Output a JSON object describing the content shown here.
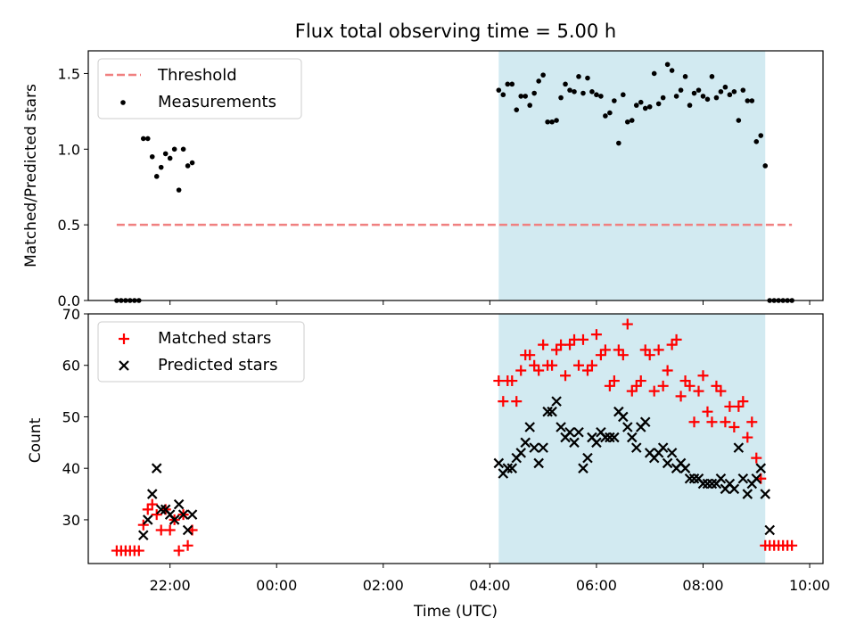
{
  "title": "Flux total observing time = 5.00 h",
  "colors": {
    "threshold": "#f08080",
    "shade": "#add8e6",
    "matched": "#ff0000",
    "predicted": "#000000",
    "measurement": "#000000"
  },
  "chart_data": [
    {
      "type": "scatter",
      "id": "ratio",
      "ylabel": "Matched/Predicted stars",
      "xlabel": "",
      "xlim": [
        "20:28",
        "10:15"
      ],
      "ylim": [
        0,
        1.65
      ],
      "yticks": [
        "0.0",
        "0.5",
        "1.0",
        "1.5"
      ],
      "shaded_range": [
        "04:10",
        "09:10"
      ],
      "legend": {
        "position": "upper-left",
        "entries": [
          "Threshold",
          "Measurements"
        ]
      },
      "threshold": {
        "name": "Threshold",
        "y": 0.5,
        "x": [
          "21:00",
          "09:40"
        ]
      },
      "series": [
        {
          "name": "Measurements",
          "points": [
            [
              "21:00",
              0
            ],
            [
              "21:05",
              0
            ],
            [
              "21:10",
              0
            ],
            [
              "21:15",
              0
            ],
            [
              "21:20",
              0
            ],
            [
              "21:25",
              0
            ],
            [
              "21:30",
              1.07
            ],
            [
              "21:35",
              1.07
            ],
            [
              "21:40",
              0.95
            ],
            [
              "21:45",
              0.82
            ],
            [
              "21:50",
              0.88
            ],
            [
              "21:55",
              0.97
            ],
            [
              "22:00",
              0.94
            ],
            [
              "22:05",
              1.0
            ],
            [
              "22:10",
              0.73
            ],
            [
              "22:15",
              1.0
            ],
            [
              "22:20",
              0.89
            ],
            [
              "22:25",
              0.91
            ],
            [
              "04:10",
              1.39
            ],
            [
              "04:15",
              1.36
            ],
            [
              "04:20",
              1.43
            ],
            [
              "04:25",
              1.43
            ],
            [
              "04:30",
              1.26
            ],
            [
              "04:35",
              1.35
            ],
            [
              "04:40",
              1.35
            ],
            [
              "04:45",
              1.29
            ],
            [
              "04:50",
              1.37
            ],
            [
              "04:55",
              1.45
            ],
            [
              "05:00",
              1.49
            ],
            [
              "05:05",
              1.18
            ],
            [
              "05:10",
              1.18
            ],
            [
              "05:15",
              1.19
            ],
            [
              "05:20",
              1.34
            ],
            [
              "05:25",
              1.43
            ],
            [
              "05:30",
              1.39
            ],
            [
              "05:35",
              1.38
            ],
            [
              "05:40",
              1.48
            ],
            [
              "05:45",
              1.37
            ],
            [
              "05:50",
              1.47
            ],
            [
              "05:55",
              1.38
            ],
            [
              "06:00",
              1.36
            ],
            [
              "06:05",
              1.35
            ],
            [
              "06:10",
              1.22
            ],
            [
              "06:15",
              1.24
            ],
            [
              "06:20",
              1.32
            ],
            [
              "06:25",
              1.04
            ],
            [
              "06:30",
              1.36
            ],
            [
              "06:35",
              1.18
            ],
            [
              "06:40",
              1.19
            ],
            [
              "06:45",
              1.29
            ],
            [
              "06:50",
              1.31
            ],
            [
              "06:55",
              1.27
            ],
            [
              "07:00",
              1.28
            ],
            [
              "07:05",
              1.5
            ],
            [
              "07:10",
              1.3
            ],
            [
              "07:15",
              1.34
            ],
            [
              "07:20",
              1.56
            ],
            [
              "07:25",
              1.52
            ],
            [
              "07:30",
              1.35
            ],
            [
              "07:35",
              1.39
            ],
            [
              "07:40",
              1.48
            ],
            [
              "07:45",
              1.29
            ],
            [
              "07:50",
              1.37
            ],
            [
              "07:55",
              1.39
            ],
            [
              "08:00",
              1.35
            ],
            [
              "08:05",
              1.33
            ],
            [
              "08:10",
              1.48
            ],
            [
              "08:15",
              1.34
            ],
            [
              "08:20",
              1.38
            ],
            [
              "08:25",
              1.41
            ],
            [
              "08:30",
              1.36
            ],
            [
              "08:35",
              1.38
            ],
            [
              "08:40",
              1.19
            ],
            [
              "08:45",
              1.39
            ],
            [
              "08:50",
              1.32
            ],
            [
              "08:55",
              1.32
            ],
            [
              "09:00",
              1.05
            ],
            [
              "09:05",
              1.09
            ],
            [
              "09:10",
              0.89
            ],
            [
              "09:15",
              0
            ],
            [
              "09:20",
              0
            ],
            [
              "09:25",
              0
            ],
            [
              "09:30",
              0
            ],
            [
              "09:35",
              0
            ],
            [
              "09:40",
              0
            ]
          ]
        }
      ]
    },
    {
      "type": "scatter",
      "id": "counts",
      "ylabel": "Count",
      "xlabel": "Time (UTC)",
      "xlim": [
        "20:28",
        "10:15"
      ],
      "ylim": [
        21.5,
        70
      ],
      "yticks": [
        "30",
        "40",
        "50",
        "60",
        "70"
      ],
      "xticks": [
        "22:00",
        "00:00",
        "02:00",
        "04:00",
        "06:00",
        "08:00",
        "10:00"
      ],
      "shaded_range": [
        "04:10",
        "09:10"
      ],
      "legend": {
        "position": "upper-left",
        "entries": [
          "Matched stars",
          "Predicted stars"
        ]
      },
      "series": [
        {
          "name": "Matched stars",
          "marker": "plus",
          "points": [
            [
              "21:00",
              24
            ],
            [
              "21:05",
              24
            ],
            [
              "21:10",
              24
            ],
            [
              "21:15",
              24
            ],
            [
              "21:20",
              24
            ],
            [
              "21:25",
              24
            ],
            [
              "21:30",
              29
            ],
            [
              "21:35",
              32
            ],
            [
              "21:40",
              33
            ],
            [
              "21:45",
              31
            ],
            [
              "21:50",
              28
            ],
            [
              "21:55",
              32
            ],
            [
              "22:00",
              28
            ],
            [
              "22:05",
              30
            ],
            [
              "22:10",
              24
            ],
            [
              "22:15",
              31
            ],
            [
              "22:20",
              25
            ],
            [
              "22:25",
              28
            ],
            [
              "04:10",
              57
            ],
            [
              "04:15",
              53
            ],
            [
              "04:20",
              57
            ],
            [
              "04:25",
              57
            ],
            [
              "04:30",
              53
            ],
            [
              "04:35",
              59
            ],
            [
              "04:40",
              62
            ],
            [
              "04:45",
              62
            ],
            [
              "04:50",
              60
            ],
            [
              "04:55",
              59
            ],
            [
              "05:00",
              64
            ],
            [
              "05:05",
              60
            ],
            [
              "05:10",
              60
            ],
            [
              "05:15",
              63
            ],
            [
              "05:20",
              64
            ],
            [
              "05:25",
              58
            ],
            [
              "05:30",
              64
            ],
            [
              "05:35",
              65
            ],
            [
              "05:40",
              60
            ],
            [
              "05:45",
              65
            ],
            [
              "05:50",
              59
            ],
            [
              "05:55",
              60
            ],
            [
              "06:00",
              66
            ],
            [
              "06:05",
              62
            ],
            [
              "06:10",
              63
            ],
            [
              "06:15",
              56
            ],
            [
              "06:20",
              57
            ],
            [
              "06:25",
              63
            ],
            [
              "06:30",
              62
            ],
            [
              "06:35",
              68
            ],
            [
              "06:40",
              55
            ],
            [
              "06:45",
              56
            ],
            [
              "06:50",
              57
            ],
            [
              "06:55",
              63
            ],
            [
              "07:00",
              62
            ],
            [
              "07:05",
              55
            ],
            [
              "07:10",
              63
            ],
            [
              "07:15",
              56
            ],
            [
              "07:20",
              59
            ],
            [
              "07:25",
              64
            ],
            [
              "07:30",
              65
            ],
            [
              "07:35",
              54
            ],
            [
              "07:40",
              57
            ],
            [
              "07:45",
              56
            ],
            [
              "07:50",
              49
            ],
            [
              "07:55",
              55
            ],
            [
              "08:00",
              58
            ],
            [
              "08:05",
              51
            ],
            [
              "08:10",
              49
            ],
            [
              "08:15",
              56
            ],
            [
              "08:20",
              55
            ],
            [
              "08:25",
              49
            ],
            [
              "08:30",
              52
            ],
            [
              "08:35",
              48
            ],
            [
              "08:40",
              52
            ],
            [
              "08:45",
              53
            ],
            [
              "08:50",
              46
            ],
            [
              "08:55",
              49
            ],
            [
              "09:00",
              42
            ],
            [
              "09:05",
              38
            ],
            [
              "09:10",
              25
            ],
            [
              "09:15",
              25
            ],
            [
              "09:20",
              25
            ],
            [
              "09:25",
              25
            ],
            [
              "09:30",
              25
            ],
            [
              "09:35",
              25
            ],
            [
              "09:40",
              25
            ]
          ]
        },
        {
          "name": "Predicted stars",
          "marker": "x",
          "points": [
            [
              "21:30",
              27
            ],
            [
              "21:35",
              30
            ],
            [
              "21:40",
              35
            ],
            [
              "21:45",
              40
            ],
            [
              "21:50",
              32
            ],
            [
              "21:55",
              32
            ],
            [
              "22:00",
              31
            ],
            [
              "22:05",
              30
            ],
            [
              "22:10",
              33
            ],
            [
              "22:15",
              31
            ],
            [
              "22:20",
              28
            ],
            [
              "22:25",
              31
            ],
            [
              "04:10",
              41
            ],
            [
              "04:15",
              39
            ],
            [
              "04:20",
              40
            ],
            [
              "04:25",
              40
            ],
            [
              "04:30",
              42
            ],
            [
              "04:35",
              43
            ],
            [
              "04:40",
              45
            ],
            [
              "04:45",
              48
            ],
            [
              "04:50",
              44
            ],
            [
              "04:55",
              41
            ],
            [
              "05:00",
              44
            ],
            [
              "05:05",
              51
            ],
            [
              "05:10",
              51
            ],
            [
              "05:15",
              53
            ],
            [
              "05:20",
              48
            ],
            [
              "05:25",
              46
            ],
            [
              "05:30",
              47
            ],
            [
              "05:35",
              45
            ],
            [
              "05:40",
              47
            ],
            [
              "05:45",
              40
            ],
            [
              "05:50",
              42
            ],
            [
              "05:55",
              46
            ],
            [
              "06:00",
              45
            ],
            [
              "06:05",
              47
            ],
            [
              "06:10",
              46
            ],
            [
              "06:15",
              46
            ],
            [
              "06:20",
              46
            ],
            [
              "06:25",
              51
            ],
            [
              "06:30",
              50
            ],
            [
              "06:35",
              48
            ],
            [
              "06:40",
              46
            ],
            [
              "06:45",
              44
            ],
            [
              "06:50",
              48
            ],
            [
              "06:55",
              49
            ],
            [
              "07:00",
              43
            ],
            [
              "07:05",
              42
            ],
            [
              "07:10",
              43
            ],
            [
              "07:15",
              44
            ],
            [
              "07:20",
              41
            ],
            [
              "07:25",
              43
            ],
            [
              "07:30",
              40
            ],
            [
              "07:35",
              41
            ],
            [
              "07:40",
              40
            ],
            [
              "07:45",
              38
            ],
            [
              "07:50",
              38
            ],
            [
              "07:55",
              38
            ],
            [
              "08:00",
              37
            ],
            [
              "08:05",
              37
            ],
            [
              "08:10",
              37
            ],
            [
              "08:15",
              37
            ],
            [
              "08:20",
              38
            ],
            [
              "08:25",
              36
            ],
            [
              "08:30",
              37
            ],
            [
              "08:35",
              36
            ],
            [
              "08:40",
              44
            ],
            [
              "08:45",
              38
            ],
            [
              "08:50",
              35
            ],
            [
              "08:55",
              37
            ],
            [
              "09:00",
              38
            ],
            [
              "09:05",
              40
            ],
            [
              "09:10",
              35
            ],
            [
              "09:15",
              28
            ]
          ]
        }
      ]
    }
  ]
}
